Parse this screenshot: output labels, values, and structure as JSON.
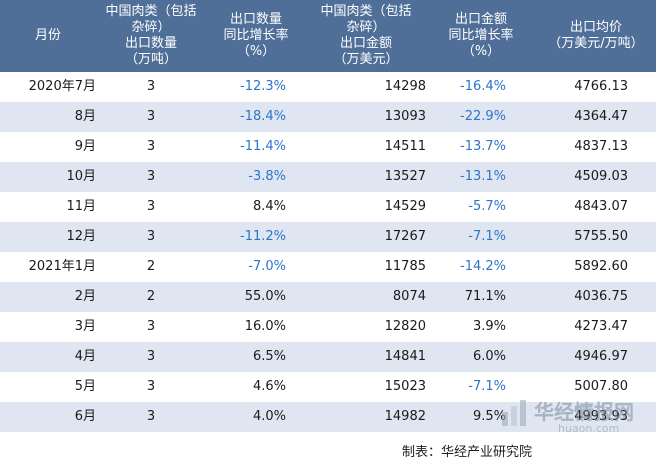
{
  "chart_data": {
    "type": "table",
    "columns": [
      "月份",
      "中国肉类（包括\n杂碎）\n出口数量\n（万吨）",
      "出口数量\n同比增长率\n（%）",
      "中国肉类（包括\n杂碎）\n出口金额\n（万美元）",
      "出口金额\n同比增长率\n（%）",
      "出口均价\n（万美元/万吨）"
    ],
    "rows": [
      {
        "month": "2020年7月",
        "qty": "3",
        "qty_yoy": "-12.3%",
        "amount": "14298",
        "amount_yoy": "-16.4%",
        "price": "4766.13"
      },
      {
        "month": "8月",
        "qty": "3",
        "qty_yoy": "-18.4%",
        "amount": "13093",
        "amount_yoy": "-22.9%",
        "price": "4364.47"
      },
      {
        "month": "9月",
        "qty": "3",
        "qty_yoy": "-11.4%",
        "amount": "14511",
        "amount_yoy": "-13.7%",
        "price": "4837.13"
      },
      {
        "month": "10月",
        "qty": "3",
        "qty_yoy": "-3.8%",
        "amount": "13527",
        "amount_yoy": "-13.1%",
        "price": "4509.03"
      },
      {
        "month": "11月",
        "qty": "3",
        "qty_yoy": "8.4%",
        "amount": "14529",
        "amount_yoy": "-5.7%",
        "price": "4843.07"
      },
      {
        "month": "12月",
        "qty": "3",
        "qty_yoy": "-11.2%",
        "amount": "17267",
        "amount_yoy": "-7.1%",
        "price": "5755.50"
      },
      {
        "month": "2021年1月",
        "qty": "2",
        "qty_yoy": "-7.0%",
        "amount": "11785",
        "amount_yoy": "-14.2%",
        "price": "5892.60"
      },
      {
        "month": "2月",
        "qty": "2",
        "qty_yoy": "55.0%",
        "amount": "8074",
        "amount_yoy": "71.1%",
        "price": "4036.75"
      },
      {
        "month": "3月",
        "qty": "3",
        "qty_yoy": "16.0%",
        "amount": "12820",
        "amount_yoy": "3.9%",
        "price": "4273.47"
      },
      {
        "month": "4月",
        "qty": "3",
        "qty_yoy": "6.5%",
        "amount": "14841",
        "amount_yoy": "6.0%",
        "price": "4946.97"
      },
      {
        "month": "5月",
        "qty": "3",
        "qty_yoy": "4.6%",
        "amount": "15023",
        "amount_yoy": "-7.1%",
        "price": "5007.80"
      },
      {
        "month": "6月",
        "qty": "3",
        "qty_yoy": "4.0%",
        "amount": "14982",
        "amount_yoy": "9.5%",
        "price": "4993.93"
      }
    ],
    "header_color": "#4f6f99",
    "alt_row_color": "#dfe6f2",
    "negative_color": "#2e74c9"
  },
  "footer": {
    "credit": "制表：华经产业研究院"
  },
  "watermark": {
    "name": "华经情报网",
    "url": "huaon.com"
  }
}
